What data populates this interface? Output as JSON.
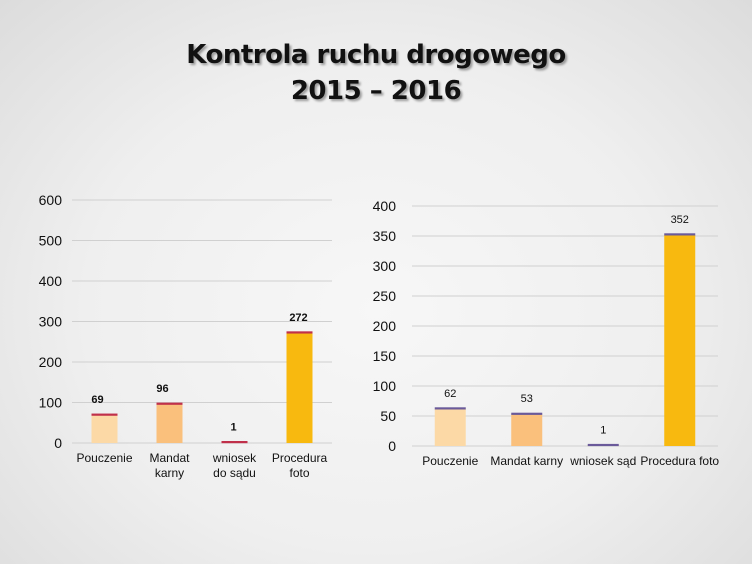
{
  "title": {
    "line1": "Kontrola ruchu drogowego",
    "line2": "2015 – 2016"
  },
  "colors": {
    "grid": "#d0d0d0",
    "cap_left": "#c0304a",
    "cap_right": "#6a5a9a"
  },
  "chart_data": [
    {
      "type": "bar",
      "categories": [
        "Pouczenie",
        "Mandat karny",
        "wniosek do sądu",
        "Procedura foto"
      ],
      "category_label_lines": [
        [
          "Pouczenie"
        ],
        [
          "Mandat",
          "karny"
        ],
        [
          "wniosek",
          "do sądu"
        ],
        [
          "Procedura",
          "foto"
        ]
      ],
      "values": [
        69,
        96,
        1,
        272
      ],
      "data_labels": [
        "69",
        "96",
        "1",
        "272"
      ],
      "bar_colors": [
        "#fcd9a6",
        "#fac07c",
        "#f6a03a",
        "#f8b90f"
      ],
      "ylim": [
        0,
        600
      ],
      "yticks": [
        0,
        100,
        200,
        300,
        400,
        500,
        600
      ],
      "grid": true,
      "title": "",
      "xlabel": "",
      "ylabel": ""
    },
    {
      "type": "bar",
      "categories": [
        "Pouczenie",
        "Mandat karny",
        "wniosek sąd",
        "Procedura foto"
      ],
      "category_label_lines": [
        [
          "Pouczenie"
        ],
        [
          "Mandat karny"
        ],
        [
          "wniosek    sąd"
        ],
        [
          "Procedura foto"
        ]
      ],
      "values": [
        62,
        53,
        1,
        352
      ],
      "data_labels": [
        "62",
        "53",
        "1",
        "352"
      ],
      "bar_colors": [
        "#fcd9a6",
        "#fac07c",
        "#f6a03a",
        "#f8b90f"
      ],
      "ylim": [
        0,
        400
      ],
      "yticks": [
        0,
        50,
        100,
        150,
        200,
        250,
        300,
        350,
        400
      ],
      "grid": true,
      "title": "",
      "xlabel": "",
      "ylabel": ""
    }
  ]
}
